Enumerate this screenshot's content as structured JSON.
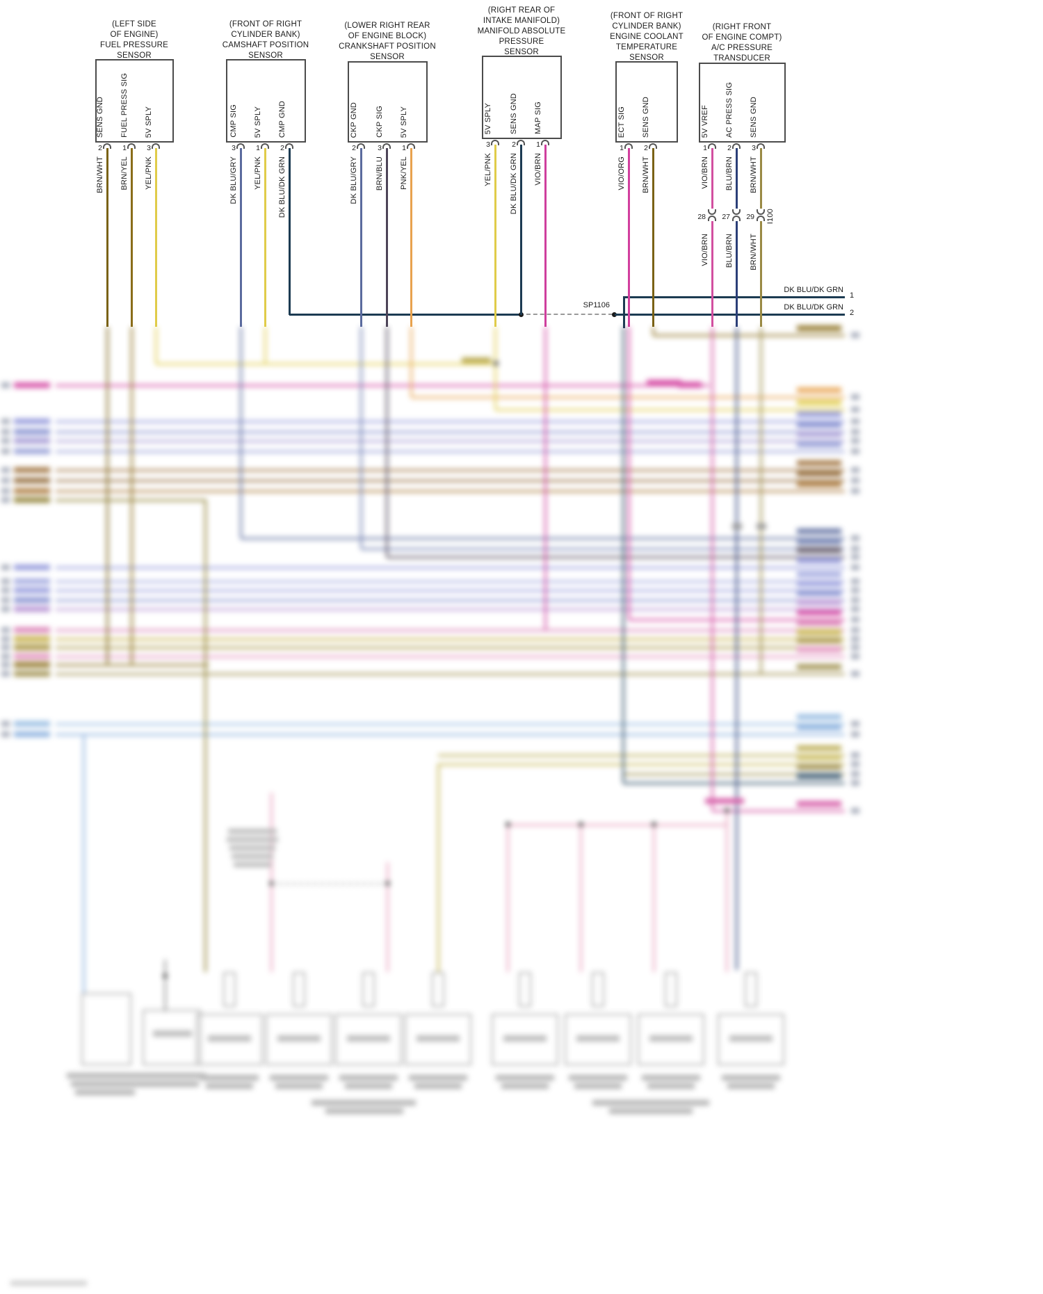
{
  "sensors": [
    {
      "title": [
        "(LEFT SIDE",
        "OF ENGINE)",
        "FUEL PRESSURE",
        "SENSOR"
      ],
      "pins": [
        {
          "label": "SENS GND",
          "number": "2",
          "wire": "BRN/WHT",
          "color": "#7a6216"
        },
        {
          "label": "FUEL PRESS SIG",
          "number": "1",
          "wire": "BRN/YEL",
          "color": "#8a6d1a"
        },
        {
          "label": "5V SPLY",
          "number": "3",
          "wire": "YEL/PNK",
          "color": "#e0cc4a"
        }
      ]
    },
    {
      "title": [
        "(FRONT OF RIGHT",
        "CYLINDER BANK)",
        "CAMSHAFT POSITION",
        "SENSOR"
      ],
      "pins": [
        {
          "label": "CMP SIG",
          "number": "3",
          "wire": "DK BLU/GRY",
          "color": "#5b6b9e"
        },
        {
          "label": "5V SPLY",
          "number": "1",
          "wire": "YEL/PNK",
          "color": "#e0cc4a"
        },
        {
          "label": "CMP GND",
          "number": "2",
          "wire": "DK BLU/DK GRN",
          "color": "#1c3b52"
        }
      ]
    },
    {
      "title": [
        "(LOWER RIGHT REAR",
        "OF ENGINE BLOCK)",
        "CRANKSHAFT POSITION",
        "SENSOR"
      ],
      "pins": [
        {
          "label": "CKP GND",
          "number": "2",
          "wire": "DK BLU/GRY",
          "color": "#5b6b9e"
        },
        {
          "label": "CKP SIG",
          "number": "3",
          "wire": "BRN/BLU",
          "color": "#4d4458"
        },
        {
          "label": "5V SPLY",
          "number": "1",
          "wire": "PNK/YEL",
          "color": "#e8a24e"
        }
      ]
    },
    {
      "title": [
        "(RIGHT REAR OF",
        "INTAKE MANIFOLD)",
        "MANIFOLD ABSOLUTE",
        "PRESSURE",
        "SENSOR"
      ],
      "pins": [
        {
          "label": "5V SPLY",
          "number": "3",
          "wire": "YEL/PNK",
          "color": "#e0cc4a"
        },
        {
          "label": "SENS GND",
          "number": "2",
          "wire": "DK BLU/DK GRN",
          "color": "#1c3b52"
        },
        {
          "label": "MAP SIG",
          "number": "1",
          "wire": "VIO/BRN",
          "color": "#cf3f9e"
        }
      ]
    },
    {
      "title": [
        "(FRONT OF RIGHT",
        "CYLINDER BANK)",
        "ENGINE COOLANT",
        "TEMPERATURE",
        "SENSOR"
      ],
      "pins": [
        {
          "label": "ECT SIG",
          "number": "1",
          "wire": "VIO/ORG",
          "color": "#d23f9e"
        },
        {
          "label": "SENS GND",
          "number": "2",
          "wire": "BRN/WHT",
          "color": "#7a6216"
        }
      ]
    },
    {
      "title": [
        "(RIGHT FRONT",
        "OF ENGINE COMPT)",
        "A/C PRESSURE",
        "TRANSDUCER"
      ],
      "pins": [
        {
          "label": "5V VREF",
          "number": "1",
          "wire": "VIO/BRN",
          "color": "#d24fa0"
        },
        {
          "label": "AC PRESS SIG",
          "number": "2",
          "wire": "BLU/BRN",
          "color": "#2b3f78"
        },
        {
          "label": "SENS GND",
          "number": "3",
          "wire": "BRN/WHT",
          "color": "#9a8a45"
        }
      ]
    }
  ],
  "connector_i100": {
    "label": "I100",
    "pins": [
      {
        "number": "28",
        "wire": "VIO/BRN"
      },
      {
        "number": "27",
        "wire": "BLU/BRN"
      },
      {
        "number": "29",
        "wire": "BRN/WHT"
      }
    ]
  },
  "splice": {
    "label": "SP1106"
  },
  "right_edge": {
    "lines": [
      {
        "label": "DK BLU/DK GRN",
        "pin": "1"
      },
      {
        "label": "DK BLU/DK GRN",
        "pin": "2"
      }
    ]
  },
  "palette": {
    "dk_blu_dk_grn": "#1c3b52",
    "dashed": "#9a9a9a",
    "box_border": "#4b4b4b"
  }
}
